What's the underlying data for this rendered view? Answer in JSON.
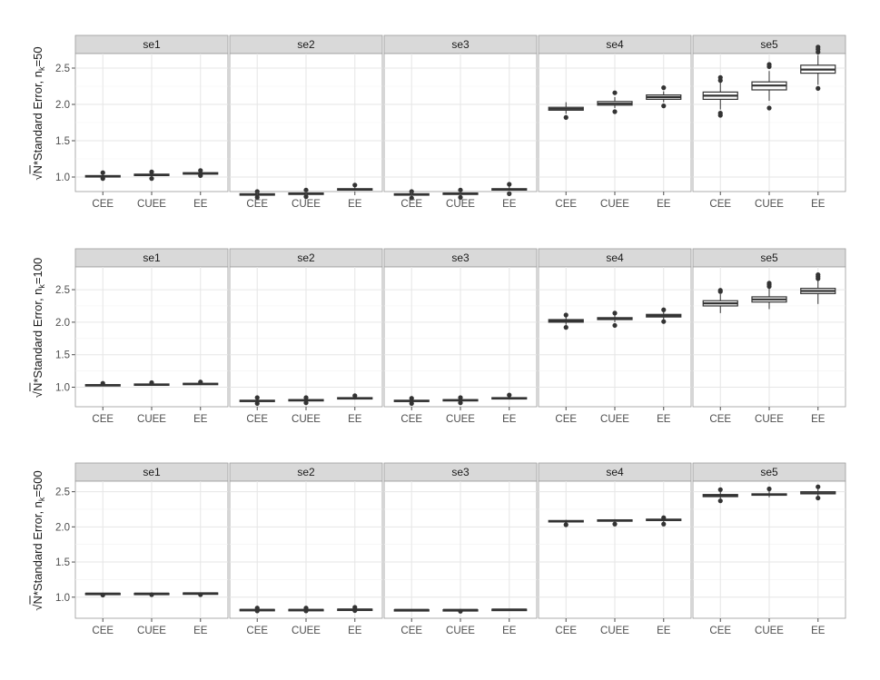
{
  "chart_data": [
    {
      "type": "boxplot",
      "ylabel": {
        "prefix": "√N",
        "main": "*Standard Error, n",
        "sub": "k",
        "suffix": "=50"
      },
      "ylim": [
        0.8,
        2.7
      ],
      "yticks": [
        "1.0",
        "1.5",
        "2.0",
        "2.5"
      ],
      "categories": [
        "CEE",
        "CUEE",
        "EE"
      ],
      "facets": [
        {
          "label": "se1",
          "boxes": [
            {
              "category": "CEE",
              "min": 1.0,
              "q1": 1.0,
              "median": 1.01,
              "q3": 1.02,
              "max": 1.03,
              "outliers": [
                0.98,
                1.06
              ]
            },
            {
              "category": "CUEE",
              "min": 1.01,
              "q1": 1.02,
              "median": 1.03,
              "q3": 1.04,
              "max": 1.05,
              "outliers": [
                0.98,
                1.07
              ]
            },
            {
              "category": "EE",
              "min": 1.03,
              "q1": 1.04,
              "median": 1.05,
              "q3": 1.06,
              "max": 1.07,
              "outliers": [
                1.02,
                1.09
              ]
            }
          ]
        },
        {
          "label": "se2",
          "boxes": [
            {
              "category": "CEE",
              "min": 0.74,
              "q1": 0.75,
              "median": 0.76,
              "q3": 0.77,
              "max": 0.78,
              "outliers": [
                0.72,
                0.8
              ]
            },
            {
              "category": "CUEE",
              "min": 0.75,
              "q1": 0.76,
              "median": 0.77,
              "q3": 0.78,
              "max": 0.8,
              "outliers": [
                0.73,
                0.82
              ]
            },
            {
              "category": "EE",
              "min": 0.81,
              "q1": 0.82,
              "median": 0.83,
              "q3": 0.84,
              "max": 0.86,
              "outliers": [
                0.89
              ]
            }
          ]
        },
        {
          "label": "se3",
          "boxes": [
            {
              "category": "CEE",
              "min": 0.74,
              "q1": 0.75,
              "median": 0.76,
              "q3": 0.77,
              "max": 0.78,
              "outliers": [
                0.71,
                0.8
              ]
            },
            {
              "category": "CUEE",
              "min": 0.75,
              "q1": 0.76,
              "median": 0.77,
              "q3": 0.78,
              "max": 0.8,
              "outliers": [
                0.72,
                0.82
              ]
            },
            {
              "category": "EE",
              "min": 0.81,
              "q1": 0.82,
              "median": 0.83,
              "q3": 0.84,
              "max": 0.87,
              "outliers": [
                0.77,
                0.9
              ]
            }
          ]
        },
        {
          "label": "se4",
          "boxes": [
            {
              "category": "CEE",
              "min": 1.87,
              "q1": 1.92,
              "median": 1.94,
              "q3": 1.96,
              "max": 2.03,
              "outliers": [
                1.82
              ]
            },
            {
              "category": "CUEE",
              "min": 1.95,
              "q1": 1.99,
              "median": 2.01,
              "q3": 2.04,
              "max": 2.1,
              "outliers": [
                1.9,
                2.16
              ]
            },
            {
              "category": "EE",
              "min": 2.03,
              "q1": 2.07,
              "median": 2.1,
              "q3": 2.13,
              "max": 2.18,
              "outliers": [
                1.98,
                2.23
              ]
            }
          ]
        },
        {
          "label": "se5",
          "boxes": [
            {
              "category": "CEE",
              "min": 1.93,
              "q1": 2.07,
              "median": 2.12,
              "q3": 2.17,
              "max": 2.3,
              "outliers": [
                1.85,
                1.88,
                2.33,
                2.37
              ]
            },
            {
              "category": "CUEE",
              "min": 2.05,
              "q1": 2.2,
              "median": 2.26,
              "q3": 2.31,
              "max": 2.46,
              "outliers": [
                1.95,
                2.52,
                2.55
              ]
            },
            {
              "category": "EE",
              "min": 2.27,
              "q1": 2.43,
              "median": 2.48,
              "q3": 2.54,
              "max": 2.68,
              "outliers": [
                2.22,
                2.72,
                2.76,
                2.79
              ]
            }
          ]
        }
      ]
    },
    {
      "type": "boxplot",
      "ylabel": {
        "prefix": "√N",
        "main": "*Standard Error, n",
        "sub": "k",
        "suffix": "=100"
      },
      "ylim": [
        0.7,
        2.85
      ],
      "yticks": [
        "1.0",
        "1.5",
        "2.0",
        "2.5"
      ],
      "categories": [
        "CEE",
        "CUEE",
        "EE"
      ],
      "facets": [
        {
          "label": "se1",
          "boxes": [
            {
              "category": "CEE",
              "min": 1.02,
              "q1": 1.03,
              "median": 1.03,
              "q3": 1.04,
              "max": 1.05,
              "outliers": [
                1.06
              ]
            },
            {
              "category": "CUEE",
              "min": 1.03,
              "q1": 1.04,
              "median": 1.04,
              "q3": 1.05,
              "max": 1.06,
              "outliers": [
                1.07
              ]
            },
            {
              "category": "EE",
              "min": 1.04,
              "q1": 1.05,
              "median": 1.05,
              "q3": 1.06,
              "max": 1.07,
              "outliers": [
                1.08
              ]
            }
          ]
        },
        {
          "label": "se2",
          "boxes": [
            {
              "category": "CEE",
              "min": 0.77,
              "q1": 0.78,
              "median": 0.79,
              "q3": 0.8,
              "max": 0.81,
              "outliers": [
                0.75,
                0.84
              ]
            },
            {
              "category": "CUEE",
              "min": 0.78,
              "q1": 0.79,
              "median": 0.8,
              "q3": 0.81,
              "max": 0.82,
              "outliers": [
                0.76,
                0.84
              ]
            },
            {
              "category": "EE",
              "min": 0.81,
              "q1": 0.82,
              "median": 0.83,
              "q3": 0.84,
              "max": 0.85,
              "outliers": [
                0.87
              ]
            }
          ]
        },
        {
          "label": "se3",
          "boxes": [
            {
              "category": "CEE",
              "min": 0.77,
              "q1": 0.78,
              "median": 0.79,
              "q3": 0.8,
              "max": 0.81,
              "outliers": [
                0.75,
                0.83
              ]
            },
            {
              "category": "CUEE",
              "min": 0.78,
              "q1": 0.79,
              "median": 0.8,
              "q3": 0.81,
              "max": 0.82,
              "outliers": [
                0.76,
                0.84
              ]
            },
            {
              "category": "EE",
              "min": 0.81,
              "q1": 0.82,
              "median": 0.83,
              "q3": 0.84,
              "max": 0.86,
              "outliers": [
                0.88
              ]
            }
          ]
        },
        {
          "label": "se4",
          "boxes": [
            {
              "category": "CEE",
              "min": 1.96,
              "q1": 2.0,
              "median": 2.02,
              "q3": 2.04,
              "max": 2.08,
              "outliers": [
                1.92,
                2.11
              ]
            },
            {
              "category": "CUEE",
              "min": 2.0,
              "q1": 2.04,
              "median": 2.05,
              "q3": 2.07,
              "max": 2.11,
              "outliers": [
                1.95,
                2.14
              ]
            },
            {
              "category": "EE",
              "min": 2.04,
              "q1": 2.08,
              "median": 2.1,
              "q3": 2.12,
              "max": 2.16,
              "outliers": [
                2.01,
                2.19
              ]
            }
          ]
        },
        {
          "label": "se5",
          "boxes": [
            {
              "category": "CEE",
              "min": 2.14,
              "q1": 2.25,
              "median": 2.29,
              "q3": 2.33,
              "max": 2.43,
              "outliers": [
                2.47,
                2.49
              ]
            },
            {
              "category": "CUEE",
              "min": 2.2,
              "q1": 2.31,
              "median": 2.35,
              "q3": 2.39,
              "max": 2.52,
              "outliers": [
                2.55,
                2.58,
                2.6
              ]
            },
            {
              "category": "EE",
              "min": 2.28,
              "q1": 2.44,
              "median": 2.48,
              "q3": 2.52,
              "max": 2.64,
              "outliers": [
                2.67,
                2.7,
                2.73
              ]
            }
          ]
        }
      ]
    },
    {
      "type": "boxplot",
      "ylabel": {
        "prefix": "√N",
        "main": "*Standard Error, n",
        "sub": "k",
        "suffix": "=500"
      },
      "ylim": [
        0.7,
        2.65
      ],
      "yticks": [
        "1.0",
        "1.5",
        "2.0",
        "2.5"
      ],
      "categories": [
        "CEE",
        "CUEE",
        "EE"
      ],
      "facets": [
        {
          "label": "se1",
          "boxes": [
            {
              "category": "CEE",
              "min": 1.04,
              "q1": 1.045,
              "median": 1.05,
              "q3": 1.055,
              "max": 1.06,
              "outliers": [
                1.03
              ]
            },
            {
              "category": "CUEE",
              "min": 1.04,
              "q1": 1.045,
              "median": 1.05,
              "q3": 1.055,
              "max": 1.06,
              "outliers": [
                1.035
              ]
            },
            {
              "category": "EE",
              "min": 1.04,
              "q1": 1.05,
              "median": 1.055,
              "q3": 1.06,
              "max": 1.065,
              "outliers": [
                1.035
              ]
            }
          ]
        },
        {
          "label": "se2",
          "boxes": [
            {
              "category": "CEE",
              "min": 0.81,
              "q1": 0.815,
              "median": 0.82,
              "q3": 0.825,
              "max": 0.83,
              "outliers": [
                0.805,
                0.845
              ]
            },
            {
              "category": "CUEE",
              "min": 0.81,
              "q1": 0.815,
              "median": 0.82,
              "q3": 0.825,
              "max": 0.835,
              "outliers": [
                0.805,
                0.845
              ]
            },
            {
              "category": "EE",
              "min": 0.815,
              "q1": 0.82,
              "median": 0.825,
              "q3": 0.83,
              "max": 0.84,
              "outliers": [
                0.81,
                0.855
              ]
            }
          ]
        },
        {
          "label": "se3",
          "boxes": [
            {
              "category": "CEE",
              "min": 0.815,
              "q1": 0.818,
              "median": 0.82,
              "q3": 0.822,
              "max": 0.825,
              "outliers": []
            },
            {
              "category": "CUEE",
              "min": 0.815,
              "q1": 0.818,
              "median": 0.82,
              "q3": 0.822,
              "max": 0.825,
              "outliers": [
                0.8
              ]
            },
            {
              "category": "EE",
              "min": 0.82,
              "q1": 0.823,
              "median": 0.825,
              "q3": 0.828,
              "max": 0.832,
              "outliers": []
            }
          ]
        },
        {
          "label": "se4",
          "boxes": [
            {
              "category": "CEE",
              "min": 2.06,
              "q1": 2.07,
              "median": 2.08,
              "q3": 2.09,
              "max": 2.1,
              "outliers": [
                2.03
              ]
            },
            {
              "category": "CUEE",
              "min": 2.07,
              "q1": 2.08,
              "median": 2.09,
              "q3": 2.1,
              "max": 2.11,
              "outliers": [
                2.04
              ]
            },
            {
              "category": "EE",
              "min": 2.07,
              "q1": 2.09,
              "median": 2.1,
              "q3": 2.11,
              "max": 2.12,
              "outliers": [
                2.04,
                2.13
              ]
            }
          ]
        },
        {
          "label": "se5",
          "boxes": [
            {
              "category": "CEE",
              "min": 2.4,
              "q1": 2.43,
              "median": 2.45,
              "q3": 2.46,
              "max": 2.5,
              "outliers": [
                2.37,
                2.53
              ]
            },
            {
              "category": "CUEE",
              "min": 2.42,
              "q1": 2.45,
              "median": 2.46,
              "q3": 2.47,
              "max": 2.51,
              "outliers": [
                2.54
              ]
            },
            {
              "category": "EE",
              "min": 2.43,
              "q1": 2.47,
              "median": 2.48,
              "q3": 2.5,
              "max": 2.54,
              "outliers": [
                2.41,
                2.57
              ]
            }
          ]
        }
      ]
    }
  ]
}
